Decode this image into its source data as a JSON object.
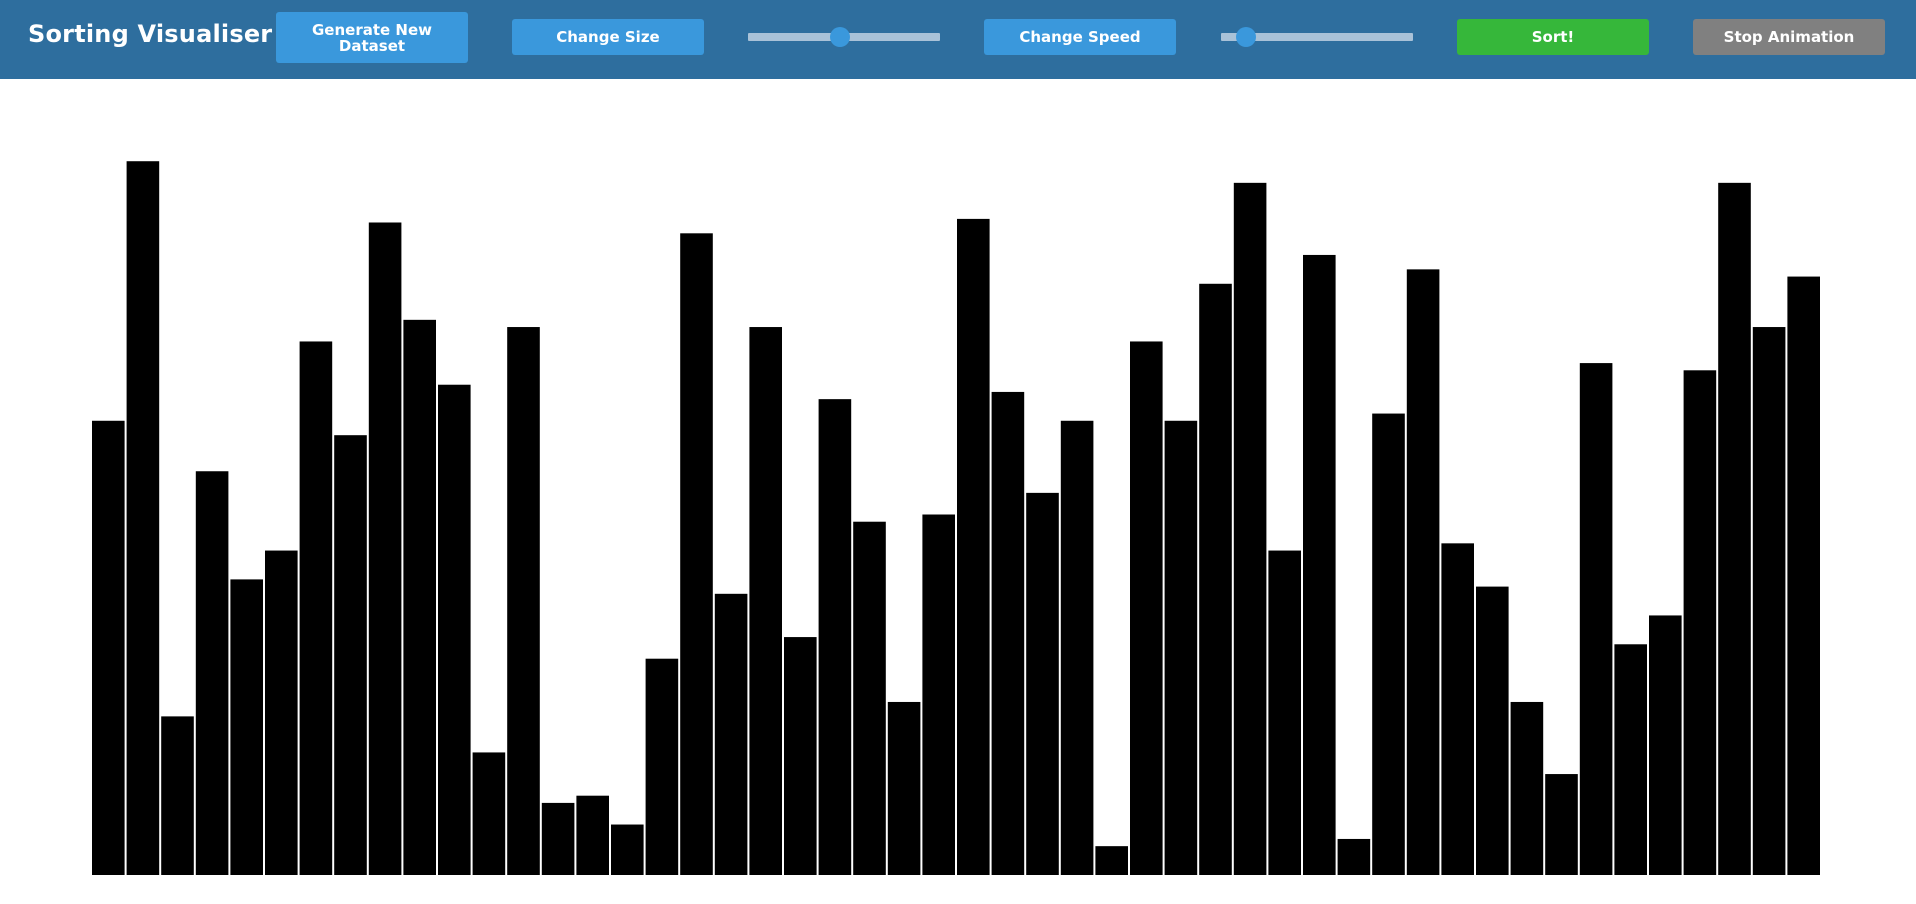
{
  "header": {
    "title": "Sorting Visualiser",
    "generate_label": "Generate New Dataset",
    "change_size_label": "Change Size",
    "change_speed_label": "Change Speed",
    "sort_label": "Sort!",
    "stop_label": "Stop Animation"
  },
  "controls": {
    "size_slider_value": 0.48,
    "speed_slider_value": 0.13
  },
  "colors": {
    "header_bg": "#2e6e9e",
    "button_blue": "#3a98dc",
    "button_sort": "#36b73a",
    "button_stop": "#808080",
    "bar_fill": "#000000"
  },
  "chart_data": {
    "type": "bar",
    "values": [
      630,
      990,
      220,
      560,
      410,
      450,
      740,
      610,
      905,
      770,
      680,
      170,
      760,
      100,
      110,
      70,
      300,
      890,
      390,
      760,
      330,
      660,
      490,
      240,
      500,
      910,
      670,
      530,
      630,
      40,
      740,
      630,
      820,
      960,
      450,
      860,
      50,
      640,
      840,
      460,
      400,
      240,
      140,
      710,
      320,
      360,
      700,
      960,
      760,
      830
    ],
    "ylim": [
      0,
      1000
    ]
  }
}
